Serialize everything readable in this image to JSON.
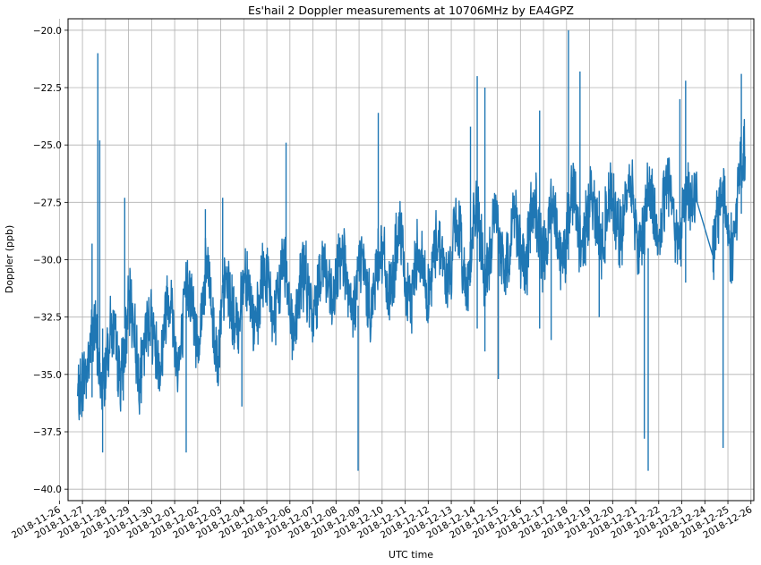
{
  "chart_data": {
    "type": "line",
    "title": "Es'hail 2 Doppler measurements at 10706MHz by EA4GPZ",
    "xlabel": "UTC time",
    "ylabel": "Doppler (ppb)",
    "ylim": [
      -40.5,
      -19.5
    ],
    "xlim": [
      "2018-11-26T09:00",
      "2018-12-26T03:00"
    ],
    "grid": true,
    "line_color": "#1f77b4",
    "y_ticks": [
      -40.0,
      -37.5,
      -35.0,
      -32.5,
      -30.0,
      -27.5,
      -25.0,
      -22.5,
      -20.0
    ],
    "y_tick_labels": [
      "−40.0",
      "−37.5",
      "−35.0",
      "−32.5",
      "−30.0",
      "−27.5",
      "−25.0",
      "−22.5",
      "−20.0"
    ],
    "x_ticks": [
      "2018-11-26",
      "2018-11-27",
      "2018-11-28",
      "2018-11-29",
      "2018-11-30",
      "2018-12-01",
      "2018-12-02",
      "2018-12-03",
      "2018-12-04",
      "2018-12-05",
      "2018-12-06",
      "2018-12-07",
      "2018-12-08",
      "2018-12-09",
      "2018-12-10",
      "2018-12-11",
      "2018-12-12",
      "2018-12-13",
      "2018-12-14",
      "2018-12-15",
      "2018-12-16",
      "2018-12-17",
      "2018-12-18",
      "2018-12-19",
      "2018-12-20",
      "2018-12-21",
      "2018-12-22",
      "2018-12-23",
      "2018-12-24",
      "2018-12-25",
      "2018-12-26"
    ],
    "series": [
      {
        "x": [
          "2018-11-26T19:00",
          "2018-11-27T03:00",
          "2018-11-27T12:00",
          "2018-11-27T20:00",
          "2018-11-28T06:00",
          "2018-11-28T16:00",
          "2018-11-29T02:00",
          "2018-11-29T12:00",
          "2018-11-29T22:00",
          "2018-11-30T08:00",
          "2018-11-30T18:00",
          "2018-12-01T04:00",
          "2018-12-01T14:00",
          "2018-12-02T00:00",
          "2018-12-02T10:00",
          "2018-12-02T20:00",
          "2018-12-03T06:00",
          "2018-12-03T16:00",
          "2018-12-04T02:00",
          "2018-12-04T12:00",
          "2018-12-04T22:00",
          "2018-12-05T08:00",
          "2018-12-05T18:00",
          "2018-12-06T04:00",
          "2018-12-06T14:00",
          "2018-12-07T00:00",
          "2018-12-07T10:00",
          "2018-12-07T20:00",
          "2018-12-08T06:00",
          "2018-12-08T16:00",
          "2018-12-09T02:00",
          "2018-12-09T12:00",
          "2018-12-09T22:00",
          "2018-12-10T08:00",
          "2018-12-10T18:00",
          "2018-12-11T04:00",
          "2018-12-11T14:00",
          "2018-12-12T00:00",
          "2018-12-12T10:00",
          "2018-12-12T20:00",
          "2018-12-13T06:00",
          "2018-12-13T16:00",
          "2018-12-14T02:00",
          "2018-12-14T12:00",
          "2018-12-14T22:00",
          "2018-12-15T08:00",
          "2018-12-15T18:00",
          "2018-12-16T04:00",
          "2018-12-16T14:00",
          "2018-12-17T00:00",
          "2018-12-17T10:00",
          "2018-12-17T20:00",
          "2018-12-18T06:00",
          "2018-12-18T16:00",
          "2018-12-19T02:00",
          "2018-12-19T12:00",
          "2018-12-19T22:00",
          "2018-12-20T08:00",
          "2018-12-20T18:00",
          "2018-12-21T04:00",
          "2018-12-21T14:00",
          "2018-12-22T00:00",
          "2018-12-22T10:00",
          "2018-12-22T20:00",
          "2018-12-23T06:00",
          "2018-12-23T16:00",
          "2018-12-24T08:00",
          "2018-12-24T18:00",
          "2018-12-25T04:00",
          "2018-12-25T14:00",
          "2018-12-25T18:00"
        ],
        "y": [
          -36.0,
          -35.0,
          -33.0,
          -35.5,
          -33.0,
          -35.0,
          -32.0,
          -35.0,
          -32.5,
          -34.5,
          -31.5,
          -34.5,
          -31.0,
          -33.5,
          -30.5,
          -34.0,
          -31.0,
          -33.0,
          -30.5,
          -33.0,
          -30.5,
          -32.5,
          -30.0,
          -33.0,
          -30.5,
          -32.5,
          -30.0,
          -32.0,
          -29.5,
          -32.5,
          -30.0,
          -32.0,
          -29.5,
          -31.5,
          -29.0,
          -32.0,
          -29.5,
          -31.5,
          -29.0,
          -31.0,
          -28.5,
          -31.0,
          -28.0,
          -31.0,
          -28.0,
          -30.5,
          -28.0,
          -30.5,
          -27.5,
          -30.0,
          -27.5,
          -30.0,
          -27.0,
          -29.5,
          -27.0,
          -29.5,
          -27.0,
          -29.0,
          -26.5,
          -29.5,
          -27.0,
          -29.0,
          -26.5,
          -29.0,
          -27.0,
          -27.5,
          -29.5,
          -27.0,
          -29.5,
          -26.0,
          -25.5
        ]
      }
    ],
    "spikes": [
      {
        "x": "2018-11-27T16:00",
        "low": -35.0,
        "high": -21.0
      },
      {
        "x": "2018-11-27T18:00",
        "low": -35.5,
        "high": -24.8
      },
      {
        "x": "2018-11-27T10:00",
        "low": -36.0,
        "high": -29.3
      },
      {
        "x": "2018-11-27T21:00",
        "low": -38.4,
        "high": -33.0
      },
      {
        "x": "2018-11-28T20:00",
        "low": -33.0,
        "high": -27.3
      },
      {
        "x": "2018-12-01T12:00",
        "low": -38.4,
        "high": -31.0
      },
      {
        "x": "2018-12-02T08:00",
        "low": -32.0,
        "high": -27.8
      },
      {
        "x": "2018-12-03T02:00",
        "low": -31.0,
        "high": -27.3
      },
      {
        "x": "2018-12-03T22:00",
        "low": -36.4,
        "high": -31.0
      },
      {
        "x": "2018-12-05T20:00",
        "low": -31.0,
        "high": -24.9
      },
      {
        "x": "2018-12-08T23:00",
        "low": -39.2,
        "high": -32.0
      },
      {
        "x": "2018-12-09T20:00",
        "low": -31.0,
        "high": -23.6
      },
      {
        "x": "2018-12-13T20:00",
        "low": -31.0,
        "high": -24.2
      },
      {
        "x": "2018-12-14T03:00",
        "low": -33.0,
        "high": -22.0
      },
      {
        "x": "2018-12-14T11:00",
        "low": -34.0,
        "high": -22.5
      },
      {
        "x": "2018-12-15T01:00",
        "low": -35.2,
        "high": -29.0
      },
      {
        "x": "2018-12-16T20:00",
        "low": -33.0,
        "high": -23.5
      },
      {
        "x": "2018-12-17T08:00",
        "low": -33.5,
        "high": -28.0
      },
      {
        "x": "2018-12-18T02:00",
        "low": -30.0,
        "high": -20.0
      },
      {
        "x": "2018-12-18T14:00",
        "low": -30.0,
        "high": -21.8
      },
      {
        "x": "2018-12-19T10:00",
        "low": -32.5,
        "high": -27.0
      },
      {
        "x": "2018-12-21T09:00",
        "low": -37.8,
        "high": -28.0
      },
      {
        "x": "2018-12-21T13:00",
        "low": -39.2,
        "high": -29.5
      },
      {
        "x": "2018-12-22T22:00",
        "low": -30.0,
        "high": -23.0
      },
      {
        "x": "2018-12-23T04:00",
        "low": -31.0,
        "high": -22.2
      },
      {
        "x": "2018-12-24T19:00",
        "low": -38.2,
        "high": -28.0
      },
      {
        "x": "2018-12-25T14:00",
        "low": -28.0,
        "high": -21.9
      }
    ]
  }
}
